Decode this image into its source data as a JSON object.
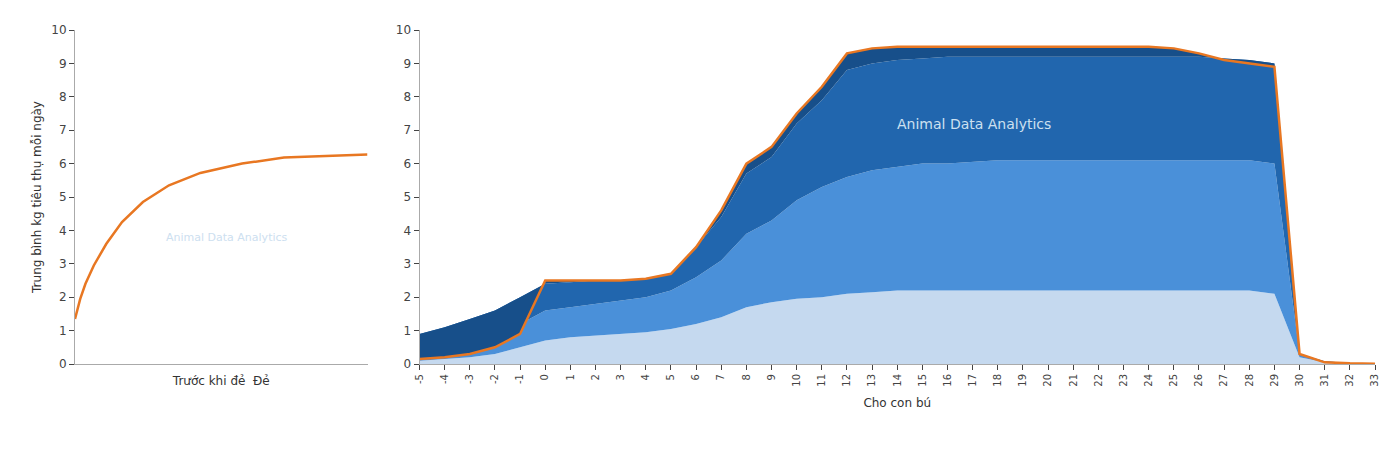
{
  "chart_data": [
    {
      "type": "line",
      "ylabel": "Trung bình kg tiêu thụ mỗi ngày",
      "xlabel": "Trước khi đẻ  Đẻ",
      "x": [
        0,
        0.2,
        0.5,
        1.0,
        1.8,
        3.0,
        4.5,
        6.5,
        9,
        12,
        16,
        20,
        25,
        28
      ],
      "series": [
        {
          "color": "#E87722",
          "values": [
            1.35,
            1.6,
            1.95,
            2.4,
            2.95,
            3.6,
            4.25,
            4.85,
            5.35,
            5.72,
            6.0,
            6.18,
            6.25,
            6.27
          ]
        }
      ],
      "xlim": [
        0,
        28
      ],
      "ylim": [
        0,
        10
      ],
      "yticks": [
        0,
        1,
        2,
        3,
        4,
        5,
        6,
        7,
        8,
        9,
        10
      ],
      "tick_labels": "y",
      "grid": false,
      "annotations": [
        "Animal Data Analytics"
      ]
    },
    {
      "type": "area",
      "xlabel": "Cho con bú",
      "x": [
        -5,
        -4,
        -3,
        -2,
        -1,
        0,
        1,
        2,
        3,
        4,
        5,
        6,
        7,
        8,
        9,
        10,
        11,
        12,
        13,
        14,
        15,
        16,
        17,
        18,
        19,
        20,
        21,
        22,
        23,
        24,
        25,
        26,
        27,
        28,
        29,
        30,
        31,
        32,
        33
      ],
      "series": [
        {
          "type": "area",
          "color": "#C5D9EF",
          "values": [
            0.1,
            0.15,
            0.2,
            0.3,
            0.5,
            0.7,
            0.8,
            0.85,
            0.9,
            0.95,
            1.05,
            1.2,
            1.4,
            1.7,
            1.85,
            1.95,
            2.0,
            2.1,
            2.15,
            2.2,
            2.2,
            2.2,
            2.2,
            2.2,
            2.2,
            2.2,
            2.2,
            2.2,
            2.2,
            2.2,
            2.2,
            2.2,
            2.2,
            2.2,
            2.1,
            0.2,
            0.05,
            0.02,
            0.01
          ]
        },
        {
          "type": "area",
          "color": "#4A90D9",
          "values": [
            0.4,
            0.5,
            0.65,
            0.85,
            1.2,
            1.6,
            1.7,
            1.8,
            1.9,
            2.0,
            2.2,
            2.6,
            3.1,
            3.9,
            4.3,
            4.9,
            5.3,
            5.6,
            5.8,
            5.9,
            6.0,
            6.0,
            6.05,
            6.1,
            6.1,
            6.1,
            6.1,
            6.1,
            6.1,
            6.1,
            6.1,
            6.1,
            6.1,
            6.1,
            6.0,
            0.3,
            0.08,
            0.03,
            0.01
          ]
        },
        {
          "type": "area",
          "color": "#2166AE",
          "values": [
            0.9,
            1.1,
            1.35,
            1.6,
            2.0,
            2.4,
            2.45,
            2.5,
            2.5,
            2.55,
            2.7,
            3.5,
            4.4,
            5.7,
            6.2,
            7.2,
            7.9,
            8.8,
            9.0,
            9.1,
            9.15,
            9.2,
            9.2,
            9.2,
            9.2,
            9.2,
            9.2,
            9.2,
            9.2,
            9.2,
            9.2,
            9.2,
            9.15,
            9.1,
            9.0,
            0.3,
            0.07,
            0.025,
            0.01
          ]
        },
        {
          "type": "area",
          "color": "#174F8A",
          "values": [
            0.15,
            0.2,
            0.3,
            0.5,
            0.9,
            2.5,
            2.5,
            2.5,
            2.5,
            2.55,
            2.7,
            3.5,
            4.6,
            6.0,
            6.5,
            7.5,
            8.3,
            9.3,
            9.45,
            9.5,
            9.5,
            9.5,
            9.5,
            9.5,
            9.5,
            9.5,
            9.5,
            9.5,
            9.5,
            9.5,
            9.45,
            9.3,
            9.1,
            9.0,
            8.9,
            0.3,
            0.05,
            0.02,
            0.01
          ]
        },
        {
          "type": "line",
          "color": "#E87722",
          "values": [
            0.15,
            0.2,
            0.3,
            0.5,
            0.9,
            2.5,
            2.5,
            2.5,
            2.5,
            2.55,
            2.7,
            3.5,
            4.6,
            6.0,
            6.5,
            7.5,
            8.3,
            9.3,
            9.45,
            9.5,
            9.5,
            9.5,
            9.5,
            9.5,
            9.5,
            9.5,
            9.5,
            9.5,
            9.5,
            9.5,
            9.45,
            9.3,
            9.1,
            9.0,
            8.9,
            0.3,
            0.05,
            0.02,
            0.01
          ]
        }
      ],
      "xlim": [
        -5,
        33
      ],
      "ylim": [
        0,
        10
      ],
      "xticks": [
        -5,
        -4,
        -3,
        -2,
        -1,
        0,
        1,
        2,
        3,
        4,
        5,
        6,
        7,
        8,
        9,
        10,
        11,
        12,
        13,
        14,
        15,
        16,
        17,
        18,
        19,
        20,
        21,
        22,
        23,
        24,
        25,
        26,
        27,
        28,
        29,
        30,
        31,
        32,
        33
      ],
      "yticks": [
        0,
        1,
        2,
        3,
        4,
        5,
        6,
        7,
        8,
        9,
        10
      ],
      "grid": false,
      "annotations": [
        "Animal Data Analytics"
      ]
    }
  ]
}
